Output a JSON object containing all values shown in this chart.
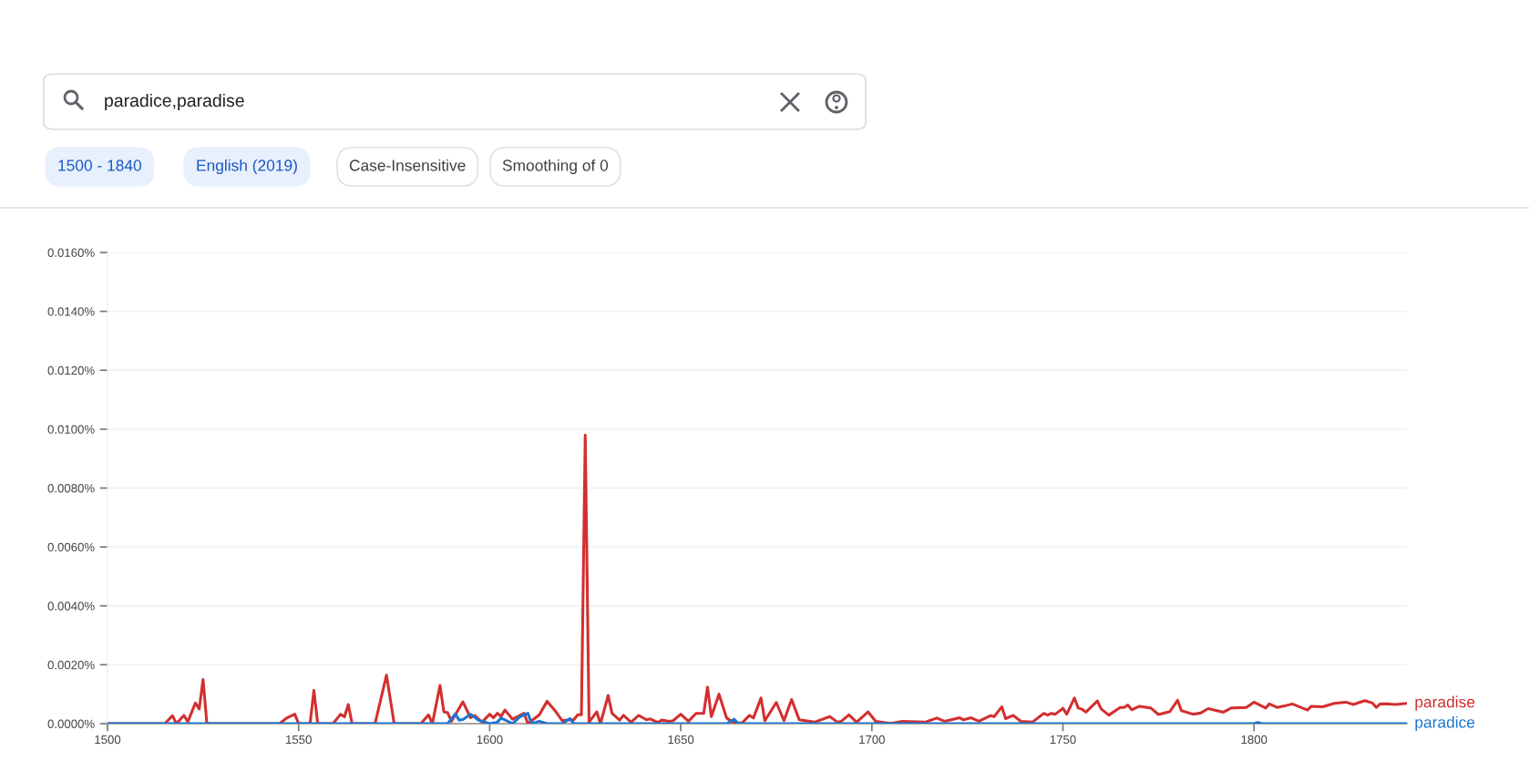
{
  "chart_data": {
    "type": "line",
    "annotations": [
      "paradice,paradise",
      "1500 - 1840",
      "English (2019)",
      "Case-Insensitive",
      "Smoothing of 0"
    ],
    "xlim": [
      1500,
      1840
    ],
    "xticks": [
      1500,
      1550,
      1600,
      1650,
      1700,
      1750,
      1800
    ],
    "ylim": [
      0,
      0.016
    ],
    "yticks": [
      {
        "value": 0,
        "label": "0.0000%"
      },
      {
        "value": 0.002,
        "label": "0.0020%"
      },
      {
        "value": 0.004,
        "label": "0.0040%"
      },
      {
        "value": 0.006,
        "label": "0.0060%"
      },
      {
        "value": 0.008,
        "label": "0.0080%"
      },
      {
        "value": 0.01,
        "label": "0.0100%"
      },
      {
        "value": 0.012,
        "label": "0.0120%"
      },
      {
        "value": 0.014,
        "label": "0.0140%"
      },
      {
        "value": 0.016,
        "label": "0.0160%"
      }
    ],
    "grid": "y",
    "marker": "none",
    "line_style": "solid",
    "series": [
      {
        "name": "paradise",
        "color": "#d32f2f",
        "x": [
          1500,
          1515,
          1517,
          1518,
          1520,
          1521,
          1523,
          1524,
          1525,
          1526,
          1545,
          1547,
          1549,
          1550,
          1553,
          1554,
          1555,
          1559,
          1561,
          1562,
          1563,
          1564,
          1570,
          1573,
          1575,
          1582,
          1584,
          1585,
          1587,
          1588,
          1589,
          1590,
          1593,
          1595,
          1596,
          1598,
          1600,
          1601,
          1602,
          1603,
          1604,
          1606,
          1609,
          1610,
          1613,
          1615,
          1617,
          1619,
          1621,
          1622,
          1623,
          1624,
          1625,
          1626,
          1628,
          1629,
          1631,
          1632,
          1634,
          1635,
          1637,
          1639,
          1641,
          1642,
          1644,
          1645,
          1647,
          1648,
          1650,
          1652,
          1654,
          1656,
          1657,
          1658,
          1660,
          1662,
          1664,
          1666,
          1668,
          1669,
          1671,
          1672,
          1675,
          1677,
          1679,
          1681,
          1685,
          1689,
          1691,
          1692,
          1694,
          1696,
          1699,
          1701,
          1705,
          1708,
          1714,
          1717,
          1719,
          1723,
          1724,
          1726,
          1728,
          1731,
          1732,
          1734,
          1735,
          1737,
          1739,
          1742,
          1745,
          1746,
          1747,
          1748,
          1750,
          1751,
          1753,
          1754,
          1755,
          1756,
          1759,
          1760,
          1762,
          1765,
          1766,
          1767,
          1768,
          1770,
          1773,
          1775,
          1778,
          1780,
          1781,
          1784,
          1786,
          1788,
          1792,
          1794,
          1798,
          1800,
          1803,
          1804,
          1806,
          1808,
          1810,
          1814,
          1815,
          1818,
          1821,
          1824,
          1826,
          1829,
          1831,
          1832,
          1833,
          1835,
          1837,
          1840
        ],
        "values": [
          0,
          0,
          0.00027,
          0,
          0.00028,
          6e-05,
          0.0007,
          0.0005,
          0.0015,
          0,
          0,
          0.0002,
          0.00032,
          0,
          0,
          0.00113,
          0,
          0,
          0.00032,
          0.00023,
          0.00065,
          0,
          0,
          0.00165,
          0,
          0,
          0.0003,
          0,
          0.0013,
          0.0004,
          0.00037,
          8e-05,
          0.00074,
          0.0002,
          0.00028,
          5e-05,
          0.00032,
          0.0002,
          0.00035,
          0.00025,
          0.00046,
          0.00015,
          0.00035,
          0,
          0.0003,
          0.00076,
          0.00046,
          0.0001,
          0.00013,
          0.00013,
          0.0003,
          0.0003,
          0.0098,
          5e-05,
          0.0004,
          0,
          0.00096,
          0.00035,
          0.00012,
          0.00028,
          5e-05,
          0.00028,
          0.00013,
          0.00016,
          4e-05,
          0.00012,
          8e-05,
          0.0001,
          0.00032,
          8e-05,
          0.00035,
          0.00035,
          0.00124,
          0.00024,
          0.001,
          0.00019,
          2e-05,
          2e-05,
          0.00028,
          0.00019,
          0.00087,
          0.0001,
          0.00072,
          0.0001,
          0.00082,
          0.00013,
          5e-05,
          0.00024,
          5e-05,
          8e-05,
          0.0003,
          5e-05,
          0.0004,
          8e-05,
          1e-05,
          8e-05,
          5e-05,
          0.00019,
          8e-05,
          0.0002,
          0.00013,
          0.0002,
          8e-05,
          0.00027,
          0.00024,
          0.00057,
          0.00017,
          0.00028,
          8e-05,
          5e-05,
          0.00035,
          0.00029,
          0.00035,
          0.00032,
          0.00052,
          0.00032,
          0.00087,
          0.00053,
          0.00049,
          0.00039,
          0.00077,
          0.0005,
          0.00029,
          0.00055,
          0.00055,
          0.00063,
          0.00047,
          0.00059,
          0.00053,
          0.00031,
          0.00041,
          0.00079,
          0.00044,
          0.00032,
          0.00036,
          0.00051,
          0.00039,
          0.00053,
          0.00055,
          0.00073,
          0.00053,
          0.00067,
          0.00055,
          0.0006,
          0.00067,
          0.00046,
          0.00059,
          0.00057,
          0.00069,
          0.00073,
          0.00065,
          0.00078,
          0.0007,
          0.00055,
          0.00067,
          0.00067,
          0.00065,
          0.00069
        ]
      },
      {
        "name": "paradice",
        "color": "#1976d2",
        "x": [
          1500,
          1589,
          1591,
          1592,
          1593,
          1595,
          1597,
          1600,
          1602,
          1603,
          1606,
          1608,
          1610,
          1611,
          1613,
          1615,
          1619,
          1621,
          1622,
          1662,
          1664,
          1665,
          1800,
          1801,
          1802,
          1840
        ],
        "values": [
          0,
          0,
          0.00033,
          0.00012,
          0.00014,
          0.00032,
          0.00012,
          0,
          5e-05,
          0.00019,
          0,
          0.00024,
          0.00035,
          0,
          8e-05,
          0,
          0,
          0.00017,
          0,
          0,
          0.00015,
          0,
          0,
          4e-05,
          0,
          0
        ]
      }
    ]
  }
}
